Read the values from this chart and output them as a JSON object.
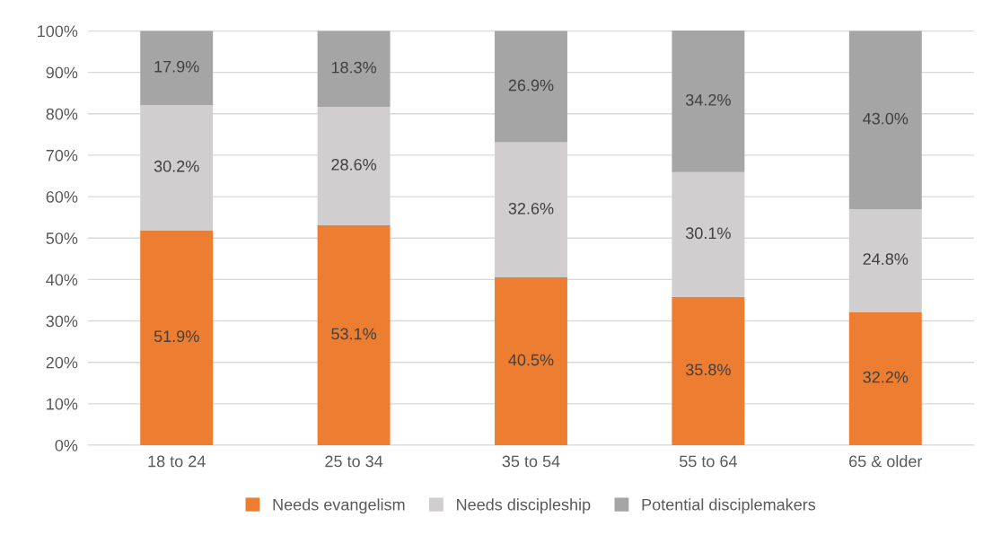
{
  "chart_data": {
    "type": "bar",
    "stacked": true,
    "categories": [
      "18 to 24",
      "25 to 34",
      "35 to 54",
      "55 to 64",
      "65 & older"
    ],
    "series": [
      {
        "name": "Needs evangelism",
        "color": "#ed7d31",
        "values": [
          51.9,
          53.1,
          40.5,
          35.8,
          32.2
        ],
        "value_labels": [
          "51.9%",
          "53.1%",
          "40.5%",
          "35.8%",
          "32.2%"
        ]
      },
      {
        "name": "Needs discipleship",
        "color": "#d0cece",
        "values": [
          30.2,
          28.6,
          32.6,
          30.1,
          24.8
        ],
        "value_labels": [
          "30.2%",
          "28.6%",
          "32.6%",
          "30.1%",
          "24.8%"
        ]
      },
      {
        "name": "Potential disciplemakers",
        "color": "#a5a5a5",
        "values": [
          17.9,
          18.3,
          26.9,
          34.2,
          43.0
        ],
        "value_labels": [
          "17.9%",
          "18.3%",
          "26.9%",
          "34.2%",
          "43.0%"
        ]
      }
    ],
    "ylim": [
      0,
      100.1
    ],
    "yticks": [
      {
        "value": 0,
        "label": "0%"
      },
      {
        "value": 10,
        "label": "10%"
      },
      {
        "value": 20,
        "label": "20%"
      },
      {
        "value": 30,
        "label": "30%"
      },
      {
        "value": 40,
        "label": "40%"
      },
      {
        "value": 50,
        "label": "50%"
      },
      {
        "value": 60,
        "label": "60%"
      },
      {
        "value": 70,
        "label": "70%"
      },
      {
        "value": 80,
        "label": "80%"
      },
      {
        "value": 90,
        "label": "90%"
      },
      {
        "value": 100,
        "label": "100%"
      }
    ],
    "grid": "y",
    "legend": "bottom"
  }
}
